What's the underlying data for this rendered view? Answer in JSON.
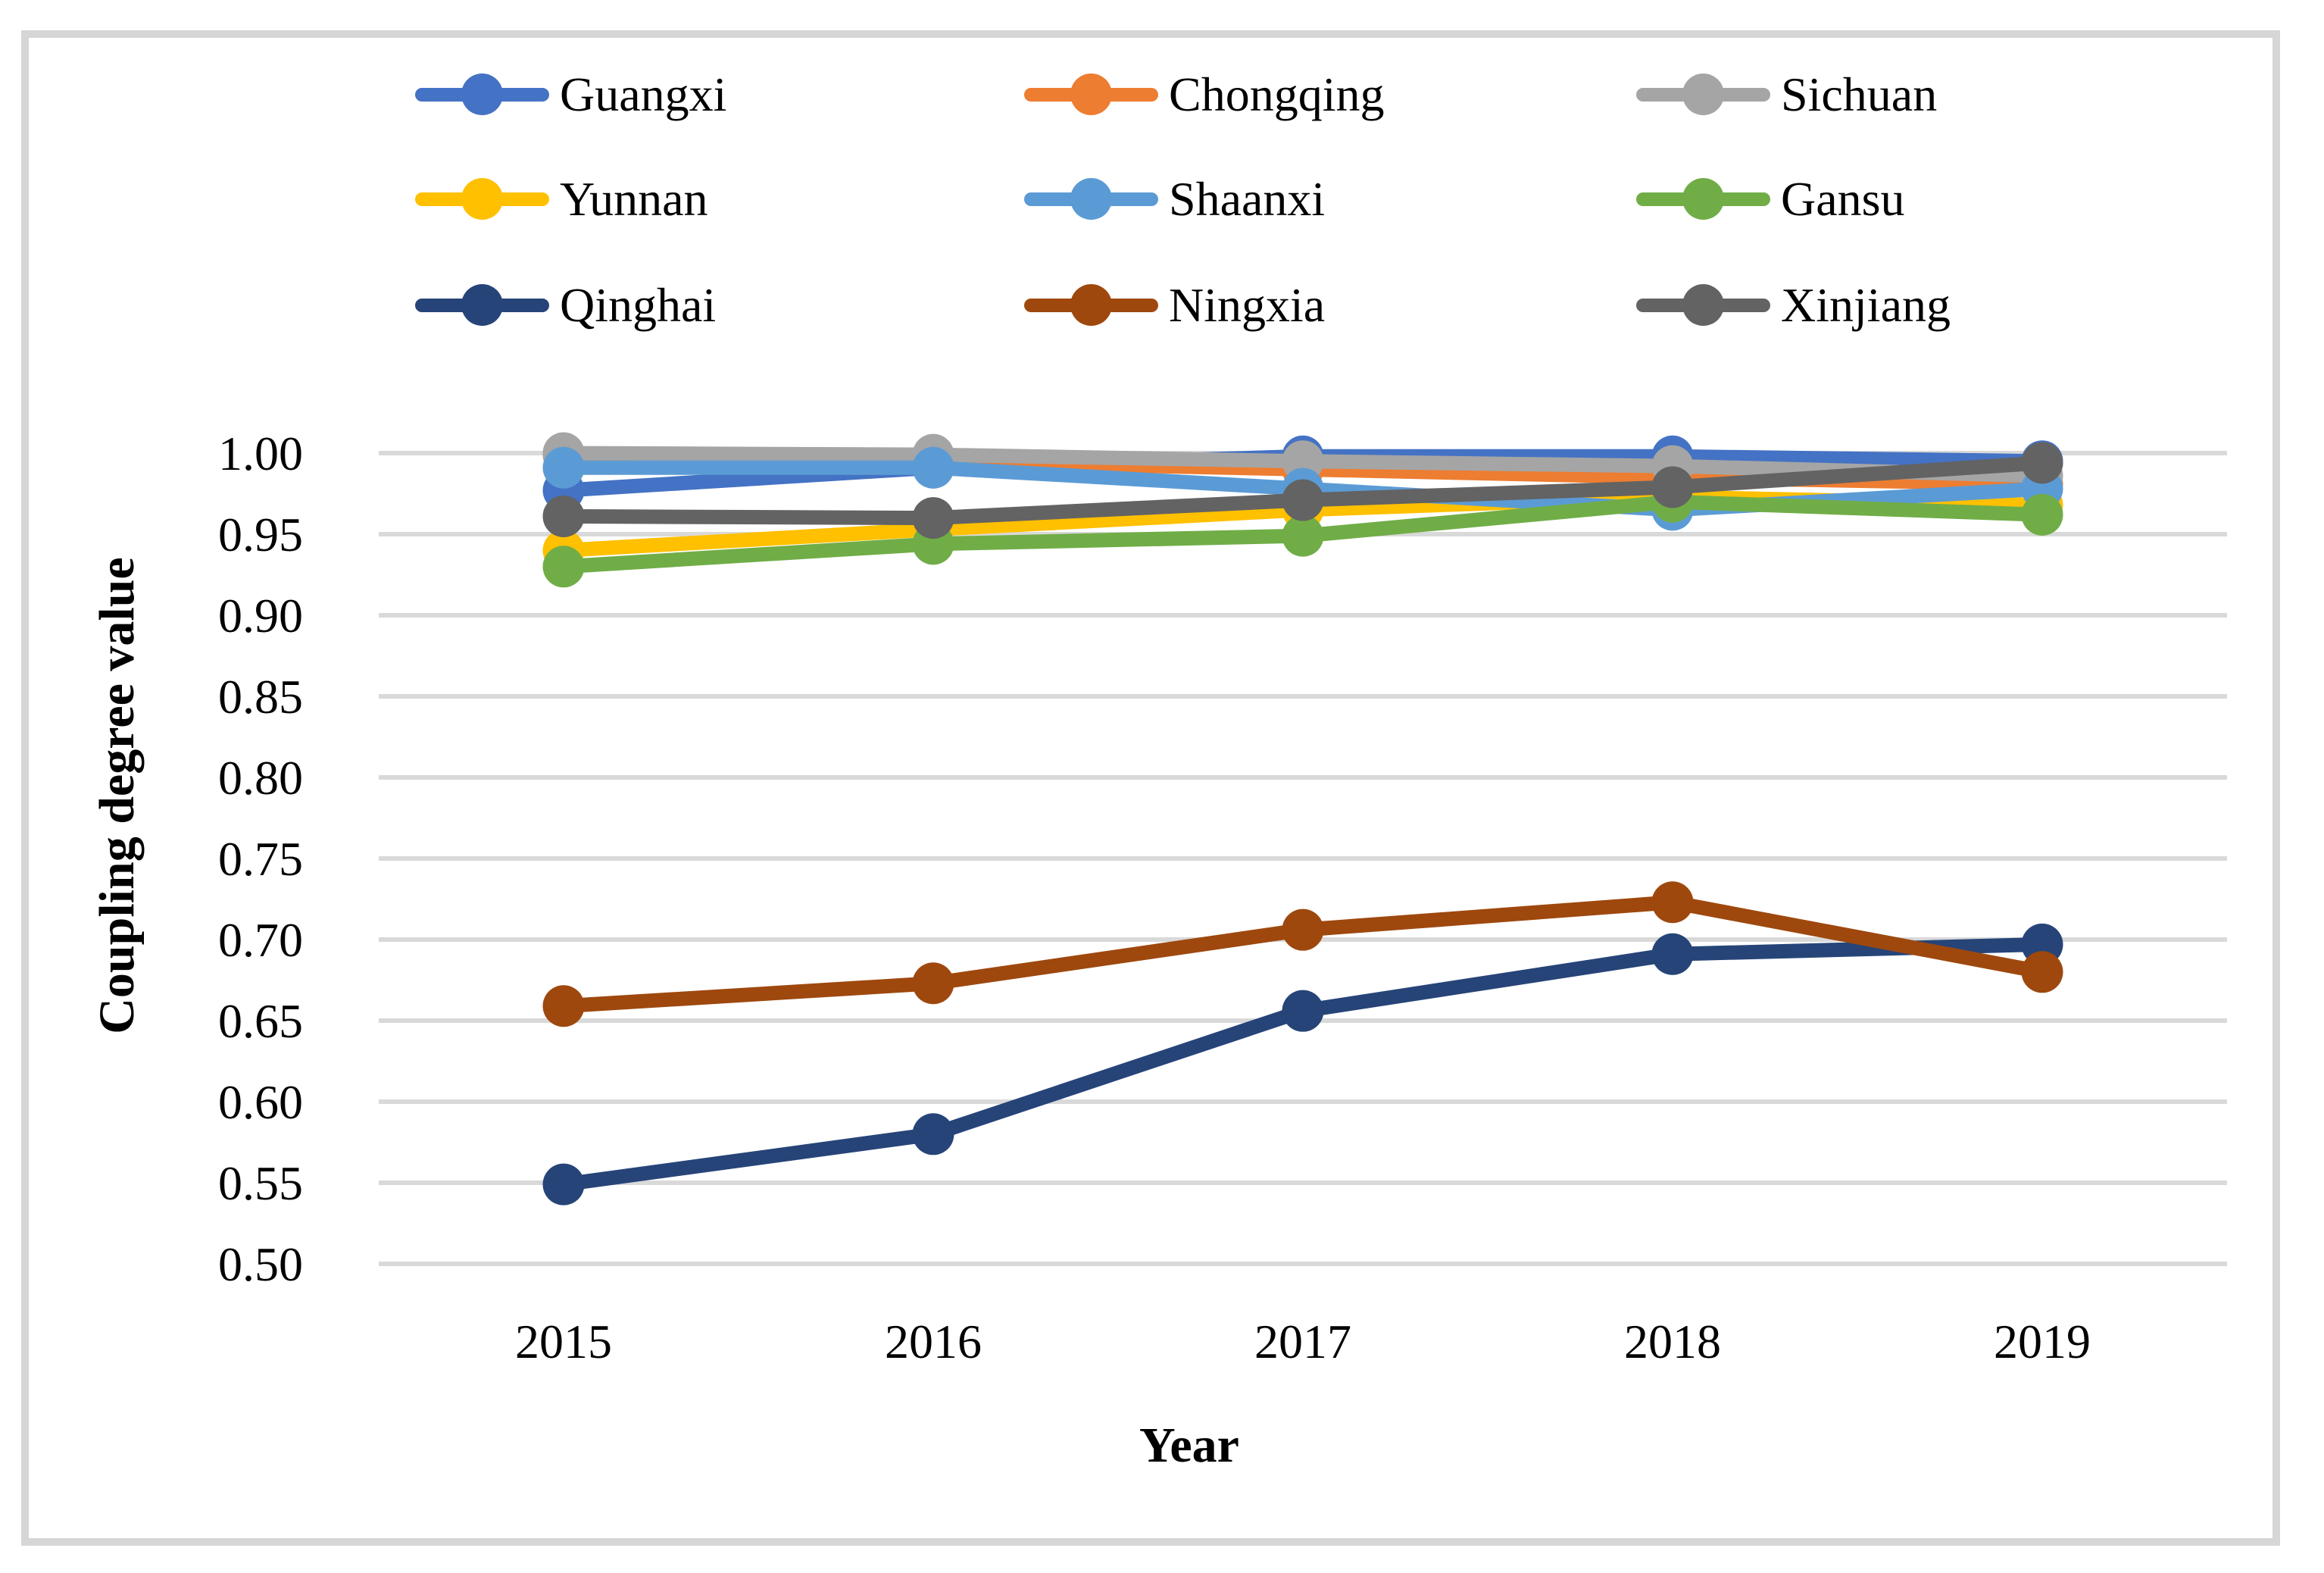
{
  "figure": {
    "border_color": "#d6d6d6",
    "background": "#ffffff",
    "gridline_color": "#d9d9d9"
  },
  "chart_data": {
    "type": "line",
    "title": "",
    "xlabel": "Year",
    "ylabel": "Coupling degree value",
    "categories": [
      2015,
      2016,
      2017,
      2018,
      2019
    ],
    "ylim": [
      0.5,
      1.0
    ],
    "ytick_step": 0.05,
    "y_ticks": [
      "1.00",
      "0.95",
      "0.90",
      "0.85",
      "0.80",
      "0.75",
      "0.70",
      "0.65",
      "0.60",
      "0.55",
      "0.50"
    ],
    "grid": true,
    "legend_position": "top",
    "legend_columns": 3,
    "series": [
      {
        "name": "Guangxi",
        "color": "#4472C4",
        "values": [
          0.977,
          0.991,
          0.998,
          0.998,
          0.995
        ]
      },
      {
        "name": "Chongqing",
        "color": "#ED7D31",
        "values": [
          0.999,
          0.995,
          0.99,
          0.985,
          0.981
        ]
      },
      {
        "name": "Sichuan",
        "color": "#A5A5A5",
        "values": [
          1.0,
          0.999,
          0.995,
          0.992,
          0.986
        ]
      },
      {
        "name": "Yunnan",
        "color": "#FFC000",
        "values": [
          0.94,
          0.953,
          0.965,
          0.973,
          0.968
        ]
      },
      {
        "name": "Shaanxi",
        "color": "#5B9BD5",
        "values": [
          0.991,
          0.991,
          0.978,
          0.965,
          0.978
        ]
      },
      {
        "name": "Gansu",
        "color": "#70AD47",
        "values": [
          0.93,
          0.944,
          0.949,
          0.97,
          0.962
        ]
      },
      {
        "name": "Qinghai",
        "color": "#264478",
        "values": [
          0.549,
          0.58,
          0.656,
          0.691,
          0.697
        ]
      },
      {
        "name": "Ningxia",
        "color": "#9E480E",
        "values": [
          0.659,
          0.673,
          0.706,
          0.723,
          0.68
        ]
      },
      {
        "name": "Xinjiang",
        "color": "#636363",
        "values": [
          0.961,
          0.96,
          0.971,
          0.979,
          0.994
        ]
      }
    ]
  }
}
